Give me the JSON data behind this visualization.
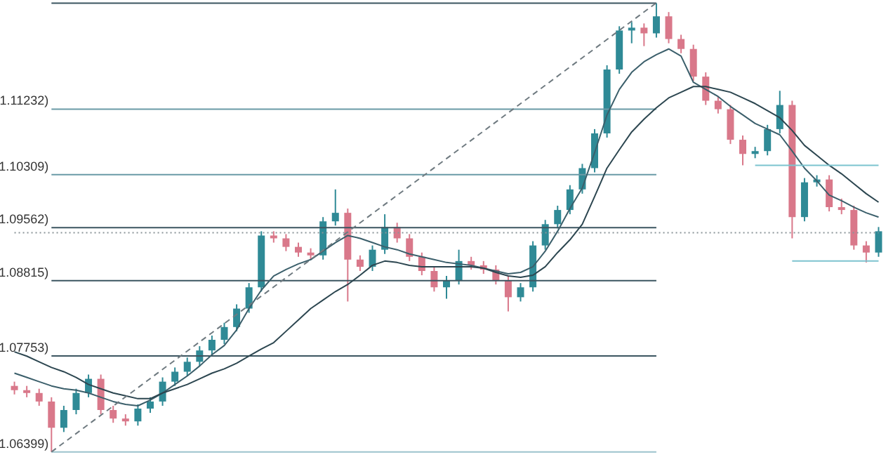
{
  "chart_data": {
    "type": "candlestick",
    "categories": [
      null,
      null,
      null,
      null,
      null,
      null,
      null,
      null,
      null,
      null,
      null,
      null,
      null,
      null,
      null,
      null,
      null,
      null,
      null,
      null,
      null,
      null,
      null,
      null,
      null,
      null,
      null,
      null,
      null,
      null,
      null,
      null,
      null,
      null,
      null,
      null,
      null,
      null,
      null,
      null,
      null,
      null,
      null,
      null,
      null,
      null,
      null,
      null,
      null,
      null,
      null,
      null,
      null,
      null,
      null,
      null,
      null,
      null,
      null,
      null,
      null,
      null,
      null,
      null,
      null,
      null,
      null,
      null,
      null,
      null,
      null
    ],
    "ohlc": [
      [
        1.0733,
        1.0739,
        1.0721,
        1.0727
      ],
      [
        1.0727,
        1.0733,
        1.0717,
        1.0723
      ],
      [
        1.0723,
        1.0729,
        1.0705,
        1.0711
      ],
      [
        1.0711,
        1.0717,
        1.06399,
        1.0674
      ],
      [
        1.0674,
        1.0705,
        1.0668,
        1.0699
      ],
      [
        1.0699,
        1.0729,
        1.0693,
        1.0723
      ],
      [
        1.0723,
        1.0749,
        1.0717,
        1.0743
      ],
      [
        1.0743,
        1.0749,
        1.0693,
        1.0699
      ],
      [
        1.0699,
        1.0705,
        1.0681,
        1.0687
      ],
      [
        1.0687,
        1.0693,
        1.0677,
        1.0683
      ],
      [
        1.0683,
        1.0707,
        1.0677,
        1.0701
      ],
      [
        1.0701,
        1.0717,
        1.0695,
        1.0711
      ],
      [
        1.0711,
        1.0745,
        1.0705,
        1.0739
      ],
      [
        1.0739,
        1.0759,
        1.0733,
        1.0753
      ],
      [
        1.0753,
        1.0773,
        1.0747,
        1.0767
      ],
      [
        1.0767,
        1.0789,
        1.0761,
        1.0783
      ],
      [
        1.0783,
        1.0804,
        1.0777,
        1.0798
      ],
      [
        1.0798,
        1.0822,
        1.0792,
        1.0816
      ],
      [
        1.0816,
        1.0848,
        1.081,
        1.0842
      ],
      [
        1.0842,
        1.0878,
        1.0836,
        1.0872
      ],
      [
        1.0872,
        1.0951,
        1.0866,
        1.0945
      ],
      [
        1.0945,
        1.0951,
        1.0935,
        1.0941
      ],
      [
        1.0941,
        1.0947,
        1.0923,
        1.0929
      ],
      [
        1.0929,
        1.0935,
        1.0915,
        1.0921
      ],
      [
        1.0921,
        1.0927,
        1.0911,
        1.0917
      ],
      [
        1.0917,
        1.0971,
        1.0911,
        1.0965
      ],
      [
        1.0965,
        1.101,
        1.0959,
        1.0977
      ],
      [
        1.0977,
        1.0983,
        1.0852,
        1.0911
      ],
      [
        1.0911,
        1.0917,
        1.0895,
        1.0901
      ],
      [
        1.0901,
        1.0931,
        1.0895,
        1.0925
      ],
      [
        1.0925,
        1.0975,
        1.0919,
        1.0957
      ],
      [
        1.0957,
        1.0963,
        1.0935,
        1.0941
      ],
      [
        1.0941,
        1.0947,
        1.0909,
        1.0915
      ],
      [
        1.0915,
        1.0921,
        1.0889,
        1.0895
      ],
      [
        1.0895,
        1.0901,
        1.0866,
        1.0872
      ],
      [
        1.0872,
        1.0888,
        1.0856,
        1.0882
      ],
      [
        1.0882,
        1.0925,
        1.0876,
        1.0909
      ],
      [
        1.0909,
        1.0915,
        1.0897,
        1.0903
      ],
      [
        1.0903,
        1.0909,
        1.0891,
        1.0897
      ],
      [
        1.0897,
        1.0903,
        1.0876,
        1.0882
      ],
      [
        1.0882,
        1.0888,
        1.0838,
        1.0858
      ],
      [
        1.0858,
        1.0878,
        1.0852,
        1.0872
      ],
      [
        1.0872,
        1.0937,
        1.0866,
        1.0931
      ],
      [
        1.0931,
        1.0967,
        1.0925,
        1.0961
      ],
      [
        1.0961,
        1.0987,
        1.0955,
        1.0981
      ],
      [
        1.0981,
        1.1016,
        1.0975,
        1.101
      ],
      [
        1.101,
        1.1046,
        1.1004,
        1.104
      ],
      [
        1.104,
        1.1095,
        1.1034,
        1.1089
      ],
      [
        1.1089,
        1.1185,
        1.1083,
        1.1179
      ],
      [
        1.1179,
        1.124,
        1.1173,
        1.1234
      ],
      [
        1.1234,
        1.1246,
        1.1216,
        1.1238
      ],
      [
        1.1238,
        1.1244,
        1.1212,
        1.123
      ],
      [
        1.123,
        1.12725,
        1.1224,
        1.1254
      ],
      [
        1.1254,
        1.126,
        1.1216,
        1.1222
      ],
      [
        1.1222,
        1.1228,
        1.1202,
        1.1208
      ],
      [
        1.1208,
        1.1214,
        1.1163,
        1.1169
      ],
      [
        1.1169,
        1.1175,
        1.1129,
        1.1135
      ],
      [
        1.1135,
        1.1141,
        1.1117,
        1.1123
      ],
      [
        1.1123,
        1.1129,
        1.1074,
        1.108
      ],
      [
        1.108,
        1.1086,
        1.1044,
        1.106
      ],
      [
        1.106,
        1.107,
        1.1054,
        1.1064
      ],
      [
        1.1064,
        1.1101,
        1.1058,
        1.1095
      ],
      [
        1.1095,
        1.1149,
        1.1089,
        1.1129
      ],
      [
        1.1129,
        1.1135,
        1.0941,
        1.0971
      ],
      [
        1.0971,
        1.1026,
        1.0965,
        1.102
      ],
      [
        1.102,
        1.103,
        1.1014,
        1.1024
      ],
      [
        1.1024,
        1.103,
        1.0979,
        1.0985
      ],
      [
        1.0985,
        1.0997,
        1.0975,
        1.0981
      ],
      [
        1.0981,
        1.0987,
        1.0925,
        1.0931
      ],
      [
        1.0931,
        1.0937,
        1.0907,
        1.0921
      ],
      [
        1.0921,
        1.0957,
        1.0915,
        1.0951
      ]
    ],
    "colors": [
      "#d9788a",
      "#d9788a",
      "#d9788a",
      "#d9788a",
      "#2f8a96",
      "#2f8a96",
      "#2f8a96",
      "#d9788a",
      "#d9788a",
      "#d9788a",
      "#2f8a96",
      "#2f8a96",
      "#2f8a96",
      "#2f8a96",
      "#2f8a96",
      "#2f8a96",
      "#2f8a96",
      "#2f8a96",
      "#2f8a96",
      "#2f8a96",
      "#2f8a96",
      "#d9788a",
      "#d9788a",
      "#d9788a",
      "#d9788a",
      "#2f8a96",
      "#2f8a96",
      "#d9788a",
      "#d9788a",
      "#2f8a96",
      "#2f8a96",
      "#d9788a",
      "#d9788a",
      "#d9788a",
      "#d9788a",
      "#2f8a96",
      "#2f8a96",
      "#d9788a",
      "#d9788a",
      "#d9788a",
      "#d9788a",
      "#2f8a96",
      "#2f8a96",
      "#2f8a96",
      "#2f8a96",
      "#2f8a96",
      "#2f8a96",
      "#2f8a96",
      "#2f8a96",
      "#2f8a96",
      "#2f8a96",
      "#d9788a",
      "#2f8a96",
      "#d9788a",
      "#d9788a",
      "#d9788a",
      "#d9788a",
      "#d9788a",
      "#d9788a",
      "#d9788a",
      "#2f8a96",
      "#2f8a96",
      "#2f8a96",
      "#d9788a",
      "#2f8a96",
      "#2f8a96",
      "#d9788a",
      "#d9788a",
      "#d9788a",
      "#d9788a",
      "#2f8a96"
    ],
    "series": [
      {
        "type": "line",
        "color": "#3b5f6b",
        "line_style": "solid",
        "values": [
          1.0751,
          1.0745,
          1.0739,
          1.0733,
          1.0729,
          1.0727,
          1.0723,
          1.0717,
          1.0711,
          1.0707,
          1.0705,
          1.0713,
          1.0723,
          1.0735,
          1.0747,
          1.0761,
          1.0777,
          1.079,
          1.0812,
          1.0842,
          1.0868,
          1.0888,
          1.0897,
          1.0905,
          1.0911,
          1.0923,
          1.0935,
          1.0945,
          1.0941,
          1.0935,
          1.0929,
          1.0925,
          1.0919,
          1.0915,
          1.0911,
          1.0907,
          1.0905,
          1.0903,
          1.0899,
          1.0895,
          1.0891,
          1.0893,
          1.0901,
          1.0923,
          1.0951,
          1.0983,
          1.1012,
          1.1062,
          1.1115,
          1.1151,
          1.1175,
          1.119,
          1.12,
          1.1208,
          1.1198,
          1.1161,
          1.1151,
          1.1141,
          1.1127,
          1.1115,
          1.1103,
          1.1095,
          1.1087,
          1.1064,
          1.104,
          1.1022,
          1.1002,
          1.0994,
          1.0985,
          1.0977,
          1.0971
        ]
      },
      {
        "type": "line",
        "color": "#2c4650",
        "line_style": "solid",
        "values": [
          1.0781,
          1.0775,
          1.0767,
          1.0759,
          1.0753,
          1.0745,
          1.0735,
          1.0729,
          1.0723,
          1.0719,
          1.0715,
          1.0715,
          1.0723,
          1.0729,
          1.0735,
          1.0743,
          1.0751,
          1.0757,
          1.0765,
          1.0775,
          1.0785,
          1.0794,
          1.081,
          1.0826,
          1.0842,
          1.0854,
          1.0866,
          1.0876,
          1.0889,
          1.0903,
          1.0909,
          1.0907,
          1.0903,
          1.0901,
          1.0901,
          1.0901,
          1.0901,
          1.0901,
          1.0899,
          1.0893,
          1.0888,
          1.0886,
          1.0889,
          1.0901,
          1.0921,
          1.0939,
          1.0961,
          1.1,
          1.104,
          1.1066,
          1.1091,
          1.1109,
          1.1125,
          1.1139,
          1.1147,
          1.1155,
          1.1155,
          1.1151,
          1.1147,
          1.1139,
          1.1131,
          1.1121,
          1.1111,
          1.1093,
          1.1072,
          1.1058,
          1.1044,
          1.1032,
          1.1018,
          1.1004,
          1.0992
        ]
      },
      {
        "type": "line",
        "color": "#6f7a80",
        "line_style": "dashed",
        "values": [
          null,
          null,
          null,
          1.064,
          null,
          null,
          null,
          null,
          null,
          null,
          null,
          null,
          null,
          null,
          null,
          null,
          null,
          null,
          null,
          null,
          null,
          null,
          null,
          null,
          null,
          null,
          null,
          null,
          null,
          null,
          null,
          null,
          null,
          null,
          null,
          null,
          null,
          null,
          null,
          null,
          null,
          null,
          null,
          null,
          null,
          null,
          null,
          null,
          null,
          null,
          null,
          null,
          1.1273,
          null,
          null,
          null,
          null,
          null,
          null,
          null,
          null,
          null,
          null,
          null,
          null,
          null,
          null,
          null,
          null,
          null,
          null
        ]
      },
      {
        "type": "line",
        "color": "#7cc3cf",
        "line_style": "solid",
        "values": [
          null,
          null,
          null,
          null,
          null,
          null,
          null,
          null,
          null,
          null,
          null,
          null,
          null,
          null,
          null,
          null,
          null,
          null,
          null,
          null,
          null,
          null,
          null,
          null,
          null,
          null,
          null,
          null,
          null,
          null,
          null,
          null,
          null,
          null,
          null,
          null,
          null,
          null,
          null,
          null,
          null,
          null,
          null,
          null,
          null,
          null,
          null,
          null,
          null,
          null,
          null,
          null,
          null,
          null,
          null,
          null,
          null,
          null,
          null,
          null,
          1.1044,
          null,
          null,
          null,
          null,
          null,
          null,
          null,
          null,
          null,
          1.1044
        ]
      },
      {
        "type": "line",
        "color": "#7cc3cf",
        "line_style": "solid",
        "values": [
          null,
          null,
          null,
          null,
          null,
          null,
          null,
          null,
          null,
          null,
          null,
          null,
          null,
          null,
          null,
          null,
          null,
          null,
          null,
          null,
          null,
          null,
          null,
          null,
          null,
          null,
          null,
          null,
          null,
          null,
          null,
          null,
          null,
          null,
          null,
          null,
          null,
          null,
          null,
          null,
          null,
          null,
          null,
          null,
          null,
          null,
          null,
          null,
          null,
          null,
          null,
          null,
          null,
          null,
          null,
          null,
          null,
          null,
          null,
          null,
          null,
          null,
          null,
          1.0909,
          null,
          null,
          null,
          null,
          null,
          null,
          1.0909
        ]
      }
    ],
    "ref_lines": [
      {
        "axis": "y",
        "value": 1.12725,
        "label": null,
        "color": "#3b5560",
        "line_style": "solid"
      },
      {
        "axis": "y",
        "value": 1.11232,
        "label": "1.11232)",
        "color": "#6a9aa6",
        "line_style": "solid"
      },
      {
        "axis": "y",
        "value": 1.10309,
        "label": "1.10309)",
        "color": "#6a9aa6",
        "line_style": "solid"
      },
      {
        "axis": "y",
        "value": 1.09562,
        "label": "1.09562)",
        "color": "#3b5560",
        "line_style": "solid"
      },
      {
        "axis": "y",
        "value": 1.08815,
        "label": "1.08815)",
        "color": "#3b5560",
        "line_style": "solid"
      },
      {
        "axis": "y",
        "value": 1.07753,
        "label": "1.07753)",
        "color": "#3b5560",
        "line_style": "solid"
      },
      {
        "axis": "y",
        "value": 1.06399,
        "label": "1.06399)",
        "color": "#9cc3cc",
        "line_style": "solid"
      },
      {
        "axis": "y",
        "value": 1.0949,
        "label": null,
        "color": "#8a9499",
        "line_style": "dotted"
      }
    ],
    "ylim": [
      1.0606,
      1.1277
    ],
    "tick_labels": false
  }
}
